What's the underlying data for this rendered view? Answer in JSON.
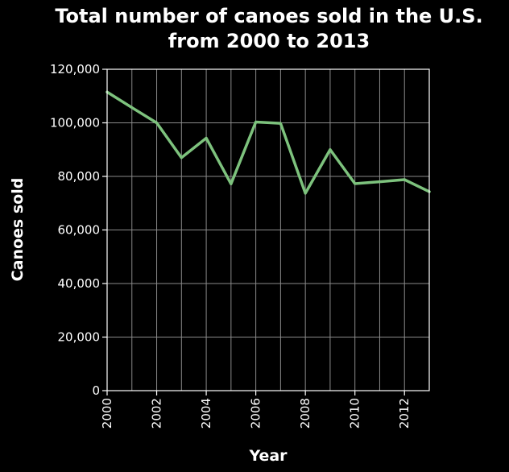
{
  "chart_data": {
    "type": "line",
    "title": [
      "Total number of canoes sold in the U.S.",
      "from 2000 to 2013"
    ],
    "xlabel": "Year",
    "ylabel": "Canoes sold",
    "xlim": [
      2000,
      2013
    ],
    "ylim": [
      0,
      120000
    ],
    "x_ticks": [
      2000,
      2002,
      2004,
      2006,
      2008,
      2010,
      2012
    ],
    "x_tick_labels": [
      "2000",
      "2002",
      "2004",
      "2006",
      "2008",
      "2010",
      "2012"
    ],
    "y_ticks": [
      0,
      20000,
      40000,
      60000,
      80000,
      100000,
      120000
    ],
    "y_tick_labels": [
      "0",
      "20,000",
      "40,000",
      "60,000",
      "80,000",
      "100,000",
      "120,000"
    ],
    "grid": true,
    "series": [
      {
        "color": "#7dc27d",
        "x": [
          2000,
          2001,
          2002,
          2003,
          2004,
          2005,
          2006,
          2007,
          2008,
          2009,
          2010,
          2011,
          2012,
          2013
        ],
        "y": [
          111500,
          105700,
          100000,
          87000,
          94300,
          77200,
          100300,
          99800,
          73700,
          90000,
          77300,
          78000,
          78800,
          74300
        ]
      }
    ]
  }
}
